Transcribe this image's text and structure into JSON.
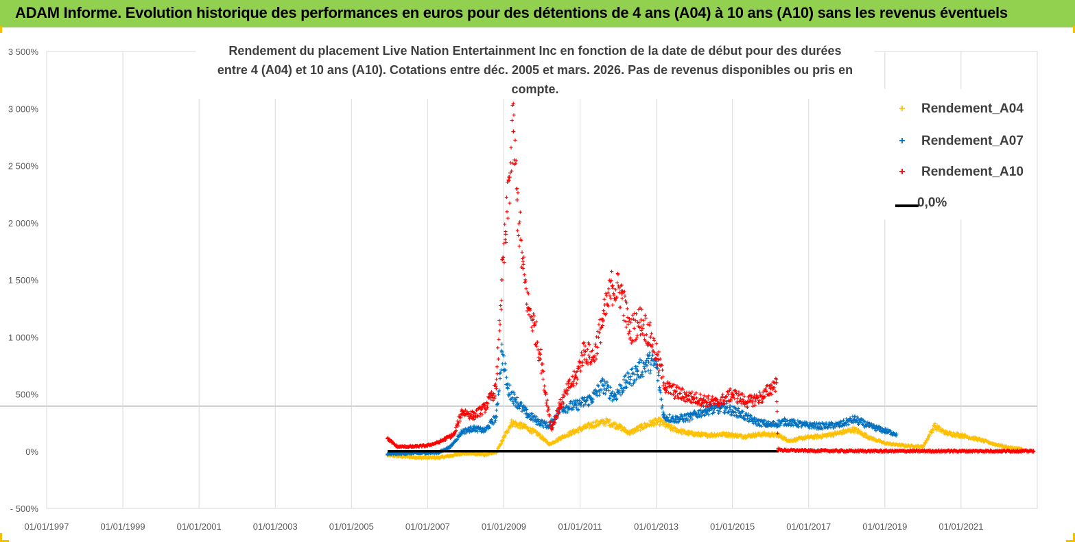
{
  "banner": {
    "title": "ADAM Informe. Evolution historique des performances en euros pour des détentions de 4 ans (A04) à 10 ans (A10) sans les revenus éventuels"
  },
  "colors": {
    "banner_bg": "#92d050",
    "accent_corner": "#f2c200",
    "a04": "#ffc000",
    "a07": "#0070c0",
    "a10": "#ff0000",
    "zero": "#000000"
  },
  "chart_data": {
    "type": "scatter",
    "title_lines": [
      "Rendement du placement Live Nation Entertainment Inc en fonction de la date de début pour des durées",
      "entre 4 (A04) et 10 ans (A10). Cotations entre déc. 2005 et mars. 2026. Pas de revenus disponibles ou pris  en compte."
    ],
    "x_ticks": [
      "01/01/1997",
      "01/01/1999",
      "01/01/2001",
      "01/01/2003",
      "01/01/2005",
      "01/01/2007",
      "01/01/2009",
      "01/01/2011",
      "01/01/2013",
      "01/01/2015",
      "01/01/2017",
      "01/01/2019",
      "01/01/2021"
    ],
    "xlim": [
      1997.0,
      2023.0
    ],
    "y_ticks": [
      "- 500%",
      "0%",
      "500%",
      "1 000%",
      "1 500%",
      "2 000%",
      "2 500%",
      "3 000%",
      "3 500%"
    ],
    "ylim": [
      -500,
      3500
    ],
    "gridlines": "vertical",
    "legend_position": "top-right",
    "series": [
      {
        "name": "Rendement_A04",
        "marker": "+",
        "color": "#ffc000",
        "points": [
          [
            2005.95,
            -35
          ],
          [
            2006.3,
            -45
          ],
          [
            2006.8,
            -55
          ],
          [
            2007.3,
            -55
          ],
          [
            2007.6,
            -40
          ],
          [
            2007.9,
            -20
          ],
          [
            2008.2,
            -20
          ],
          [
            2008.5,
            -30
          ],
          [
            2008.8,
            -10
          ],
          [
            2009.0,
            120
          ],
          [
            2009.2,
            250
          ],
          [
            2009.5,
            220
          ],
          [
            2009.9,
            150
          ],
          [
            2010.2,
            60
          ],
          [
            2010.5,
            120
          ],
          [
            2010.9,
            180
          ],
          [
            2011.3,
            230
          ],
          [
            2011.7,
            260
          ],
          [
            2012.0,
            220
          ],
          [
            2012.3,
            160
          ],
          [
            2012.6,
            210
          ],
          [
            2012.9,
            250
          ],
          [
            2013.1,
            260
          ],
          [
            2013.4,
            200
          ],
          [
            2013.8,
            160
          ],
          [
            2014.3,
            140
          ],
          [
            2014.8,
            150
          ],
          [
            2015.3,
            130
          ],
          [
            2015.8,
            150
          ],
          [
            2016.2,
            140
          ],
          [
            2016.5,
            90
          ],
          [
            2016.9,
            120
          ],
          [
            2017.3,
            130
          ],
          [
            2017.8,
            160
          ],
          [
            2018.2,
            190
          ],
          [
            2018.6,
            120
          ],
          [
            2019.0,
            70
          ],
          [
            2019.5,
            50
          ],
          [
            2020.0,
            40
          ],
          [
            2020.3,
            220
          ],
          [
            2020.6,
            160
          ],
          [
            2021.0,
            140
          ],
          [
            2021.5,
            100
          ],
          [
            2021.9,
            60
          ],
          [
            2022.3,
            30
          ],
          [
            2022.6,
            20
          ]
        ]
      },
      {
        "name": "Rendement_A07",
        "marker": "+",
        "color": "#0070c0",
        "points": [
          [
            2005.95,
            -25
          ],
          [
            2006.3,
            -20
          ],
          [
            2006.8,
            -15
          ],
          [
            2007.3,
            -10
          ],
          [
            2007.6,
            40
          ],
          [
            2007.9,
            170
          ],
          [
            2008.2,
            200
          ],
          [
            2008.5,
            180
          ],
          [
            2008.8,
            300
          ],
          [
            2008.95,
            870
          ],
          [
            2009.1,
            550
          ],
          [
            2009.3,
            450
          ],
          [
            2009.6,
            330
          ],
          [
            2009.9,
            260
          ],
          [
            2010.2,
            220
          ],
          [
            2010.5,
            380
          ],
          [
            2010.9,
            400
          ],
          [
            2011.3,
            460
          ],
          [
            2011.6,
            580
          ],
          [
            2011.9,
            480
          ],
          [
            2012.2,
            600
          ],
          [
            2012.5,
            700
          ],
          [
            2012.8,
            780
          ],
          [
            2013.0,
            760
          ],
          [
            2013.2,
            300
          ],
          [
            2013.5,
            280
          ],
          [
            2013.9,
            300
          ],
          [
            2014.3,
            360
          ],
          [
            2014.8,
            380
          ],
          [
            2015.2,
            330
          ],
          [
            2015.6,
            260
          ],
          [
            2016.0,
            230
          ],
          [
            2016.4,
            260
          ],
          [
            2016.9,
            230
          ],
          [
            2017.3,
            220
          ],
          [
            2017.8,
            230
          ],
          [
            2018.2,
            280
          ],
          [
            2018.6,
            220
          ],
          [
            2019.0,
            180
          ],
          [
            2019.3,
            150
          ]
        ]
      },
      {
        "name": "Rendement_A10",
        "marker": "+",
        "color": "#ff0000",
        "points": [
          [
            2005.95,
            110
          ],
          [
            2006.2,
            40
          ],
          [
            2006.6,
            40
          ],
          [
            2007.0,
            50
          ],
          [
            2007.3,
            80
          ],
          [
            2007.7,
            150
          ],
          [
            2007.9,
            350
          ],
          [
            2008.2,
            310
          ],
          [
            2008.5,
            380
          ],
          [
            2008.8,
            550
          ],
          [
            2008.95,
            1500
          ],
          [
            2009.05,
            1900
          ],
          [
            2009.15,
            2400
          ],
          [
            2009.25,
            2800
          ],
          [
            2009.35,
            2200
          ],
          [
            2009.5,
            1600
          ],
          [
            2009.65,
            1250
          ],
          [
            2009.8,
            1100
          ],
          [
            2009.95,
            850
          ],
          [
            2010.1,
            500
          ],
          [
            2010.25,
            200
          ],
          [
            2010.45,
            380
          ],
          [
            2010.7,
            560
          ],
          [
            2010.9,
            650
          ],
          [
            2011.1,
            880
          ],
          [
            2011.35,
            820
          ],
          [
            2011.6,
            1150
          ],
          [
            2011.85,
            1450
          ],
          [
            2012.1,
            1380
          ],
          [
            2012.3,
            1050
          ],
          [
            2012.6,
            1150
          ],
          [
            2012.85,
            1000
          ],
          [
            2013.05,
            800
          ],
          [
            2013.25,
            560
          ],
          [
            2013.5,
            520
          ],
          [
            2013.8,
            480
          ],
          [
            2014.2,
            450
          ],
          [
            2014.6,
            420
          ],
          [
            2015.0,
            500
          ],
          [
            2015.4,
            430
          ],
          [
            2015.8,
            480
          ],
          [
            2016.0,
            550
          ],
          [
            2016.15,
            600
          ],
          [
            2016.2,
            10
          ],
          [
            2017.0,
            5
          ],
          [
            2018.0,
            3
          ],
          [
            2019.0,
            2
          ],
          [
            2020.0,
            2
          ],
          [
            2021.0,
            2
          ],
          [
            2022.0,
            2
          ],
          [
            2022.9,
            2
          ]
        ]
      },
      {
        "name": "0,0%",
        "type": "line",
        "color": "#000000",
        "points": [
          [
            2005.95,
            0
          ],
          [
            2016.2,
            0
          ]
        ]
      }
    ]
  }
}
